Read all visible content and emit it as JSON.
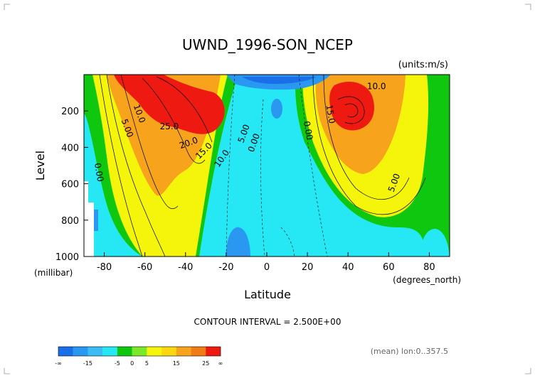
{
  "title": "UWND_1996-SON_NCEP",
  "units": "(units:m/s)",
  "ylabel": "Level",
  "yunit": "(millibar)",
  "xlabel": "Latitude",
  "xunit": "(degrees_north)",
  "contour_interval": "CONTOUR INTERVAL = 2.500E+00",
  "footer_note": "(mean) lon:0..357.5",
  "colorbar": {
    "colors": [
      "#1a6fe8",
      "#2a98f0",
      "#3cbcf5",
      "#26e8f4",
      "#0fc70f",
      "#7be82a",
      "#f5f50c",
      "#f9d80e",
      "#f7a31c",
      "#f07d14",
      "#ee1a12"
    ],
    "labels": [
      "-∞",
      "-15",
      "-5",
      "0",
      "5",
      "15",
      "25",
      "∞"
    ]
  },
  "chart_data": {
    "type": "heatmap",
    "title": "UWND_1996-SON_NCEP",
    "xlabel": "Latitude",
    "ylabel": "Level",
    "x_ticks": [
      "-80",
      "-60",
      "-40",
      "-20",
      "0",
      "20",
      "40",
      "60",
      "80"
    ],
    "y_ticks": [
      "200",
      "400",
      "600",
      "800",
      "1000"
    ],
    "xlim": [
      -90,
      90
    ],
    "ylim": [
      1000,
      0
    ],
    "contour_labels": [
      "10.0",
      "5.00",
      "0.00",
      "25.0",
      "20.0",
      "15.0",
      "10.0",
      "5.00",
      "0.00",
      "10.0",
      "15.0",
      "0.00",
      "5.00"
    ],
    "jets": [
      {
        "lat": -30,
        "level": 200,
        "approx_value": 32.5
      },
      {
        "lat": 40,
        "level": 200,
        "approx_value": 25
      }
    ]
  }
}
